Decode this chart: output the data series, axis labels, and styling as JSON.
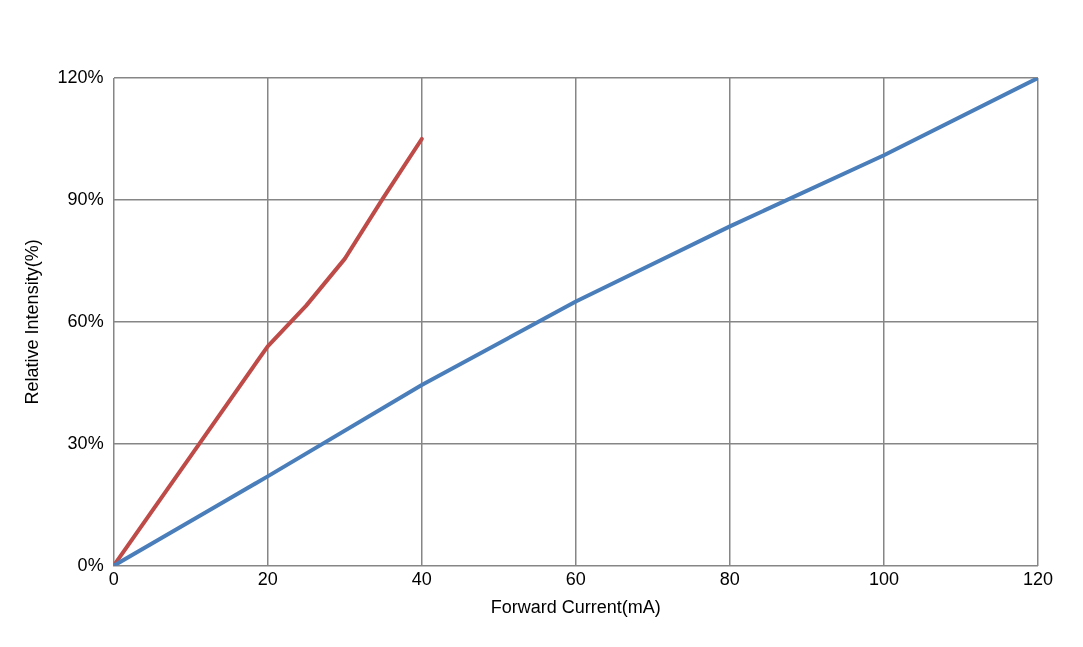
{
  "chart_data": {
    "type": "line",
    "xlabel": "Forward Current(mA)",
    "ylabel": "Relative Intensity(%)",
    "xlim": [
      0,
      120
    ],
    "xticks": [
      0,
      20,
      40,
      60,
      80,
      100,
      120
    ],
    "ylim": [
      0,
      120
    ],
    "yticks": [
      {
        "value": 0,
        "label": "0%"
      },
      {
        "value": 30,
        "label": "30%"
      },
      {
        "value": 60,
        "label": "60%"
      },
      {
        "value": 90,
        "label": "90%"
      },
      {
        "value": 120,
        "label": "120%"
      }
    ],
    "grid": true,
    "marker": "none",
    "line_style": "solid",
    "series": [
      {
        "color": "#4a7ebb",
        "x": [
          0,
          20,
          40,
          60,
          80,
          100,
          120
        ],
        "values": [
          0,
          22,
          44.5,
          65,
          83.5,
          101,
          120
        ]
      },
      {
        "color": "#be4b48",
        "x": [
          0,
          10,
          20,
          25,
          30,
          35,
          40
        ],
        "values": [
          0,
          27,
          54,
          64,
          75.5,
          90.5,
          105
        ]
      }
    ]
  }
}
